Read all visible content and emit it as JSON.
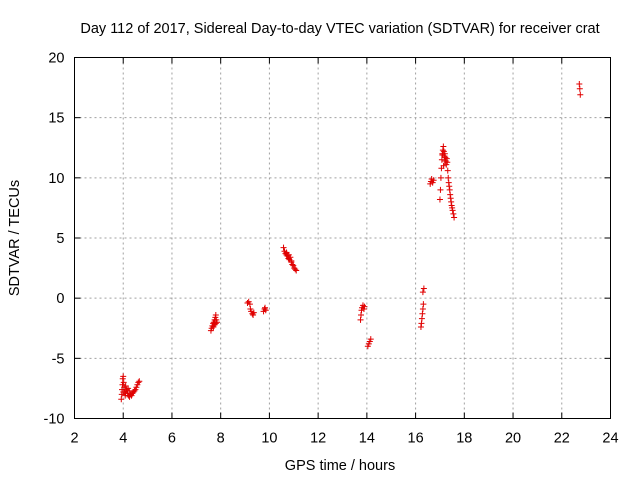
{
  "chart_data": {
    "type": "scatter",
    "title": "Day 112 of 2017, Sidereal Day-to-day VTEC variation (SDTVAR) for receiver crat",
    "xlabel": "GPS time / hours",
    "ylabel": "SDTVAR / TECUs",
    "xlim": [
      2,
      24
    ],
    "ylim": [
      -10,
      20
    ],
    "xticks": [
      "2",
      "4",
      "6",
      "8",
      "10",
      "12",
      "14",
      "16",
      "18",
      "20",
      "22",
      "24"
    ],
    "yticks": [
      "-10",
      "-5",
      "0",
      "5",
      "10",
      "15",
      "20"
    ],
    "grid": true,
    "marker": "+",
    "color": "#e00000",
    "series": [
      {
        "name": "SDTVAR",
        "points": [
          [
            3.92,
            -8.4
          ],
          [
            3.94,
            -8.0
          ],
          [
            3.95,
            -7.6
          ],
          [
            3.97,
            -7.2
          ],
          [
            3.98,
            -6.7
          ],
          [
            4.0,
            -6.5
          ],
          [
            4.02,
            -7.0
          ],
          [
            4.04,
            -7.4
          ],
          [
            4.06,
            -7.8
          ],
          [
            4.08,
            -8.1
          ],
          [
            4.1,
            -7.9
          ],
          [
            4.12,
            -7.6
          ],
          [
            4.15,
            -7.7
          ],
          [
            4.18,
            -7.9
          ],
          [
            4.22,
            -8.1
          ],
          [
            4.26,
            -8.2
          ],
          [
            4.3,
            -8.0
          ],
          [
            4.34,
            -8.1
          ],
          [
            4.38,
            -7.9
          ],
          [
            4.42,
            -7.8
          ],
          [
            4.46,
            -7.7
          ],
          [
            4.5,
            -7.6
          ],
          [
            4.54,
            -7.4
          ],
          [
            4.58,
            -7.2
          ],
          [
            4.62,
            -7.0
          ],
          [
            4.66,
            -6.9
          ],
          [
            4.2,
            -7.5
          ],
          [
            4.25,
            -7.7
          ],
          [
            4.1,
            -7.3
          ],
          [
            4.0,
            -7.8
          ],
          [
            7.6,
            -2.7
          ],
          [
            7.63,
            -2.5
          ],
          [
            7.66,
            -2.3
          ],
          [
            7.69,
            -2.1
          ],
          [
            7.72,
            -2.0
          ],
          [
            7.75,
            -1.8
          ],
          [
            7.78,
            -1.6
          ],
          [
            7.8,
            -1.4
          ],
          [
            7.82,
            -1.8
          ],
          [
            7.85,
            -2.0
          ],
          [
            7.7,
            -2.4
          ],
          [
            7.75,
            -2.2
          ],
          [
            7.8,
            -2.1
          ],
          [
            9.1,
            -0.4
          ],
          [
            9.15,
            -0.3
          ],
          [
            9.2,
            -0.5
          ],
          [
            9.22,
            -0.9
          ],
          [
            9.25,
            -1.1
          ],
          [
            9.3,
            -1.3
          ],
          [
            9.33,
            -1.4
          ],
          [
            9.36,
            -1.2
          ],
          [
            9.76,
            -1.1
          ],
          [
            9.8,
            -0.9
          ],
          [
            9.82,
            -0.8
          ],
          [
            9.85,
            -1.0
          ],
          [
            10.58,
            4.2
          ],
          [
            10.62,
            3.9
          ],
          [
            10.66,
            3.7
          ],
          [
            10.7,
            3.6
          ],
          [
            10.74,
            3.5
          ],
          [
            10.78,
            3.3
          ],
          [
            10.82,
            3.2
          ],
          [
            10.86,
            3.4
          ],
          [
            10.9,
            3.0
          ],
          [
            10.94,
            2.8
          ],
          [
            10.98,
            2.7
          ],
          [
            11.02,
            2.5
          ],
          [
            11.06,
            2.4
          ],
          [
            11.1,
            2.3
          ],
          [
            10.7,
            3.8
          ],
          [
            10.8,
            3.6
          ],
          [
            10.9,
            3.1
          ],
          [
            13.74,
            -1.8
          ],
          [
            13.76,
            -1.4
          ],
          [
            13.78,
            -1.0
          ],
          [
            13.8,
            -0.8
          ],
          [
            13.84,
            -0.6
          ],
          [
            13.88,
            -0.9
          ],
          [
            13.9,
            -0.7
          ],
          [
            14.04,
            -4.0
          ],
          [
            14.08,
            -3.8
          ],
          [
            14.12,
            -3.6
          ],
          [
            14.16,
            -3.4
          ],
          [
            16.22,
            -2.4
          ],
          [
            16.24,
            -2.1
          ],
          [
            16.26,
            -1.7
          ],
          [
            16.28,
            -1.3
          ],
          [
            16.3,
            -0.9
          ],
          [
            16.32,
            -0.5
          ],
          [
            16.3,
            0.5
          ],
          [
            16.34,
            0.8
          ],
          [
            16.6,
            9.5
          ],
          [
            16.63,
            9.7
          ],
          [
            16.66,
            9.9
          ],
          [
            16.7,
            9.6
          ],
          [
            16.74,
            9.8
          ],
          [
            17.0,
            8.2
          ],
          [
            17.02,
            9.0
          ],
          [
            17.04,
            10.0
          ],
          [
            17.06,
            10.8
          ],
          [
            17.08,
            11.5
          ],
          [
            17.1,
            12.0
          ],
          [
            17.12,
            12.3
          ],
          [
            17.14,
            12.6
          ],
          [
            17.16,
            12.2
          ],
          [
            17.18,
            11.8
          ],
          [
            17.2,
            12.0
          ],
          [
            17.22,
            11.7
          ],
          [
            17.24,
            11.4
          ],
          [
            17.26,
            11.1
          ],
          [
            17.28,
            11.6
          ],
          [
            17.3,
            11.3
          ],
          [
            17.32,
            10.6
          ],
          [
            17.34,
            10.0
          ],
          [
            17.36,
            9.6
          ],
          [
            17.38,
            9.3
          ],
          [
            17.4,
            9.0
          ],
          [
            17.42,
            8.6
          ],
          [
            17.44,
            8.3
          ],
          [
            17.46,
            8.0
          ],
          [
            17.48,
            7.7
          ],
          [
            17.5,
            7.5
          ],
          [
            17.52,
            7.3
          ],
          [
            17.55,
            7.0
          ],
          [
            17.58,
            6.7
          ],
          [
            17.15,
            11.0
          ],
          [
            17.2,
            11.4
          ],
          [
            17.1,
            11.9
          ],
          [
            22.72,
            17.8
          ],
          [
            22.74,
            17.4
          ],
          [
            22.76,
            16.9
          ]
        ]
      }
    ]
  }
}
